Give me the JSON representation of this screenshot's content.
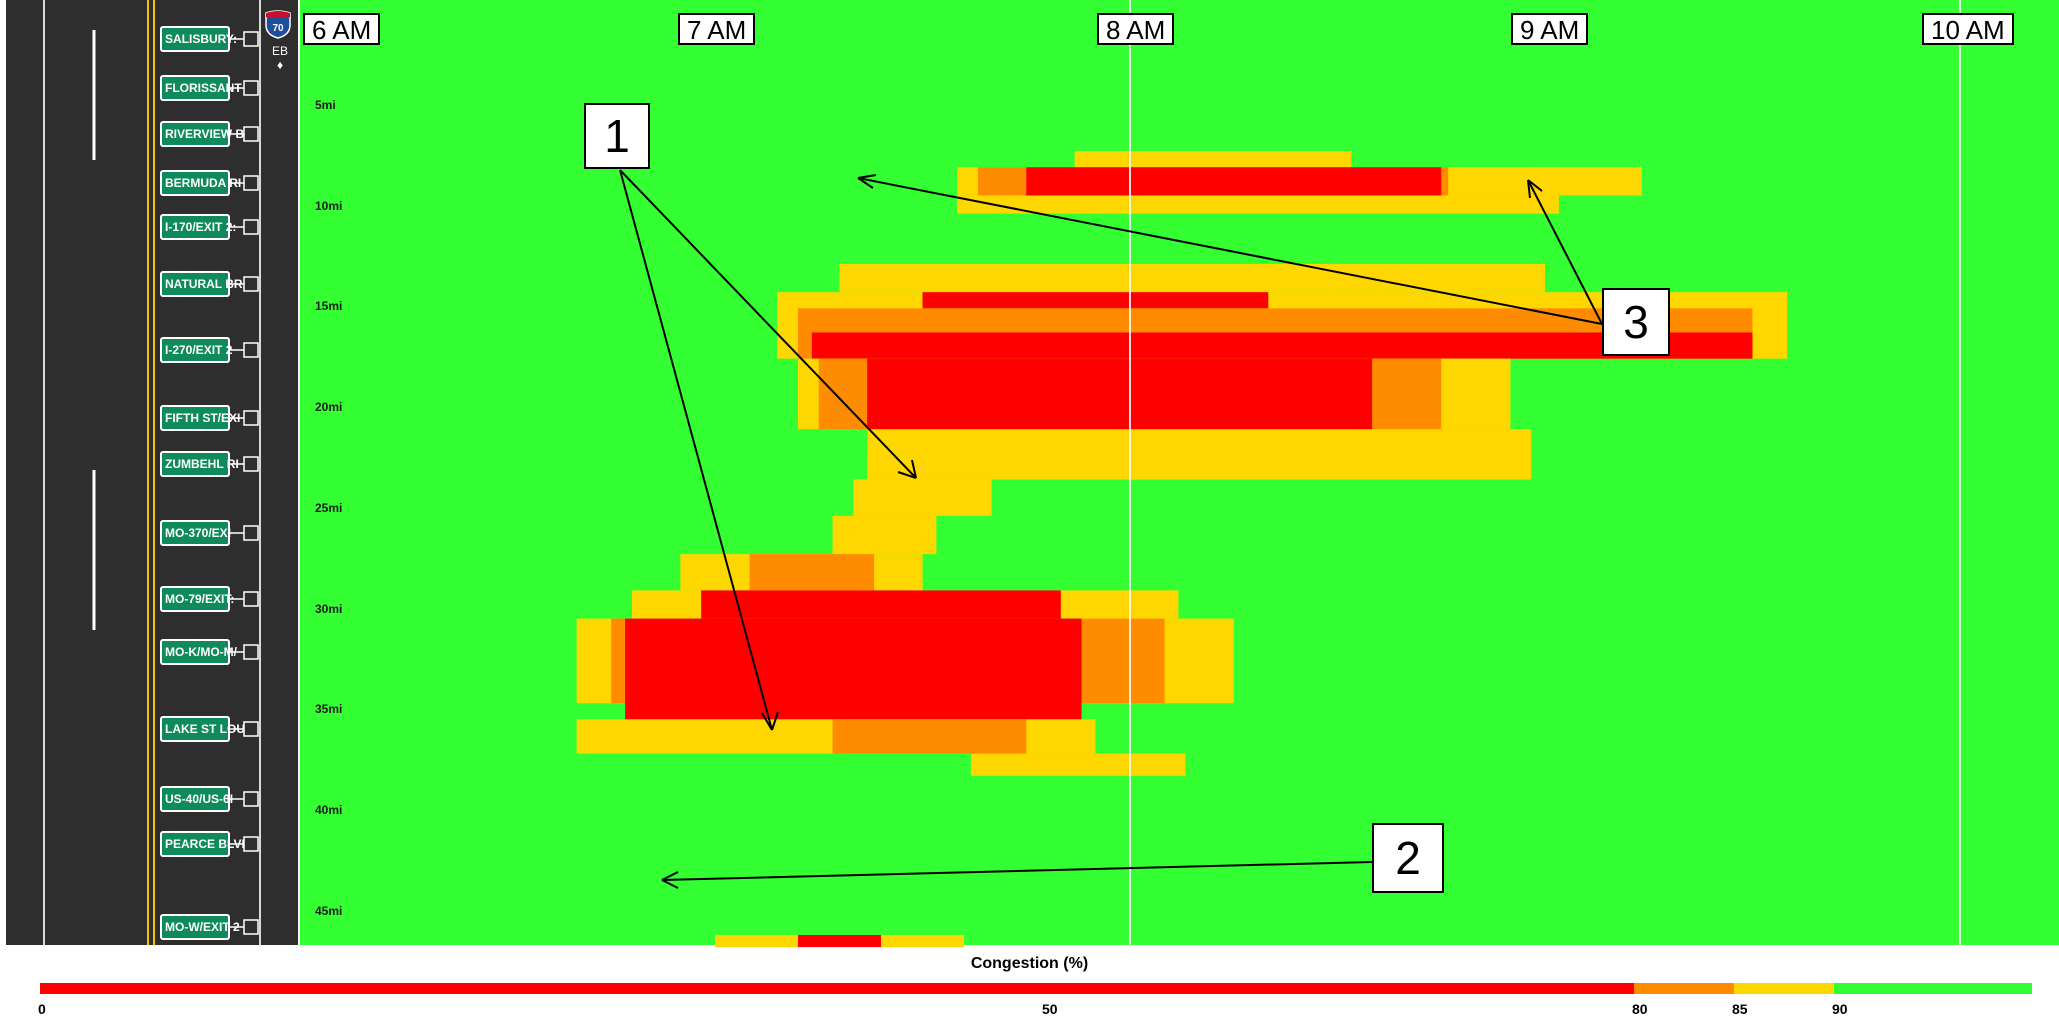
{
  "chart_data": {
    "type": "heatmap",
    "title": "",
    "direction": "EB",
    "route_shield": "70",
    "x_axis": {
      "type": "time",
      "range": [
        "6:00",
        "10:20"
      ],
      "tick_labels": [
        "6 AM",
        "7 AM",
        "8 AM",
        "9 AM",
        "10 AM"
      ]
    },
    "y_axis": {
      "label": "",
      "range_mi": [
        0,
        47
      ],
      "tick_labels": [
        "5mi",
        "10mi",
        "15mi",
        "20mi",
        "25mi",
        "30mi",
        "35mi",
        "40mi",
        "45mi"
      ]
    },
    "exits": [
      "SALISBURY:",
      "FLORISSANT",
      "RIVERVIEW B",
      "BERMUDA RI",
      "I-170/EXIT 2:",
      "NATURAL BR",
      "I-270/EXIT 2",
      "FIFTH ST/EXI",
      "ZUMBEHL RI",
      "MO-370/EXI",
      "MO-79/EXIT:",
      "MO-K/MO-M/",
      "LAKE ST LOU",
      "US-40/US-6I",
      "PEARCE BLVI",
      "MO-W/EXIT 2"
    ],
    "color_scale": {
      "title": "Congestion (%)",
      "tick_labels": [
        "0",
        "50",
        "80",
        "85",
        "90"
      ],
      "bins": [
        {
          "name": "under 80",
          "color": "#ff0000"
        },
        {
          "name": "80-85",
          "color": "#ff8c00"
        },
        {
          "name": "85-90",
          "color": "#ffd700"
        },
        {
          "name": "90+",
          "color": "#33ff33"
        }
      ]
    },
    "congestion_regions": [
      {
        "zone": "upper",
        "level": 85,
        "start": "7:52",
        "end": "8:32",
        "mi": [
          7.5,
          8.3
        ]
      },
      {
        "zone": "upper",
        "level": 85,
        "start": "7:35",
        "end": "9:02",
        "mi": [
          8.3,
          10.6
        ]
      },
      {
        "zone": "upper",
        "level": 80,
        "start": "7:38",
        "end": "8:58",
        "mi": [
          8.3,
          9.7
        ]
      },
      {
        "zone": "upper",
        "level": 0,
        "start": "7:45",
        "end": "8:45",
        "mi": [
          8.3,
          9.7
        ]
      },
      {
        "zone": "upper",
        "level": 85,
        "start": "8:46",
        "end": "9:14",
        "mi": [
          8.3,
          9.7
        ]
      },
      {
        "zone": "middle",
        "level": 85,
        "start": "7:18",
        "end": "9:00",
        "mi": [
          13.1,
          14.5
        ]
      },
      {
        "zone": "middle",
        "level": 85,
        "start": "7:09",
        "end": "9:35",
        "mi": [
          14.5,
          17.8
        ]
      },
      {
        "zone": "middle",
        "level": 80,
        "start": "7:12",
        "end": "9:30",
        "mi": [
          15.3,
          17.8
        ]
      },
      {
        "zone": "middle",
        "level": 0,
        "start": "7:30",
        "end": "8:20",
        "mi": [
          14.5,
          15.3
        ]
      },
      {
        "zone": "middle",
        "level": 0,
        "start": "7:14",
        "end": "9:30",
        "mi": [
          16.5,
          17.8
        ]
      },
      {
        "zone": "middle",
        "level": 85,
        "start": "7:12",
        "end": "8:55",
        "mi": [
          17.8,
          21.3
        ]
      },
      {
        "zone": "middle",
        "level": 80,
        "start": "7:15",
        "end": "8:45",
        "mi": [
          17.8,
          21.3
        ]
      },
      {
        "zone": "middle",
        "level": 0,
        "start": "7:22",
        "end": "8:35",
        "mi": [
          17.8,
          22.6
        ]
      },
      {
        "zone": "middle",
        "level": 85,
        "start": "7:22",
        "end": "8:58",
        "mi": [
          21.3,
          23.8
        ]
      },
      {
        "zone": "middle",
        "level": 85,
        "start": "7:20",
        "end": "7:40",
        "mi": [
          23.8,
          25.6
        ]
      },
      {
        "zone": "middle",
        "level": 85,
        "start": "7:17",
        "end": "7:32",
        "mi": [
          25.6,
          27.5
        ]
      },
      {
        "zone": "lower",
        "level": 85,
        "start": "6:55",
        "end": "7:30",
        "mi": [
          27.5,
          29.3
        ]
      },
      {
        "zone": "lower",
        "level": 80,
        "start": "7:05",
        "end": "7:23",
        "mi": [
          27.5,
          29.3
        ]
      },
      {
        "zone": "lower",
        "level": 85,
        "start": "6:48",
        "end": "8:07",
        "mi": [
          29.3,
          30.7
        ]
      },
      {
        "zone": "lower",
        "level": 0,
        "start": "6:58",
        "end": "7:50",
        "mi": [
          29.3,
          30.7
        ]
      },
      {
        "zone": "lower",
        "level": 85,
        "start": "6:40",
        "end": "8:15",
        "mi": [
          30.7,
          34.9
        ]
      },
      {
        "zone": "lower",
        "level": 80,
        "start": "6:45",
        "end": "8:05",
        "mi": [
          30.7,
          34.9
        ]
      },
      {
        "zone": "lower",
        "level": 0,
        "start": "6:47",
        "end": "7:53",
        "mi": [
          30.7,
          35.7
        ]
      },
      {
        "zone": "lower",
        "level": 85,
        "start": "6:40",
        "end": "7:55",
        "mi": [
          35.7,
          37.4
        ]
      },
      {
        "zone": "lower",
        "level": 80,
        "start": "7:17",
        "end": "7:45",
        "mi": [
          35.7,
          37.4
        ]
      },
      {
        "zone": "lower",
        "level": 85,
        "start": "7:37",
        "end": "8:08",
        "mi": [
          37.4,
          38.5
        ]
      },
      {
        "zone": "bottom",
        "level": 85,
        "start": "7:00",
        "end": "7:36",
        "mi": [
          46.4,
          47.0
        ]
      },
      {
        "zone": "bottom",
        "level": 0,
        "start": "7:12",
        "end": "7:24",
        "mi": [
          46.4,
          47.0
        ]
      }
    ]
  },
  "annotations": [
    {
      "label": "1"
    },
    {
      "label": "2"
    },
    {
      "label": "3"
    }
  ]
}
